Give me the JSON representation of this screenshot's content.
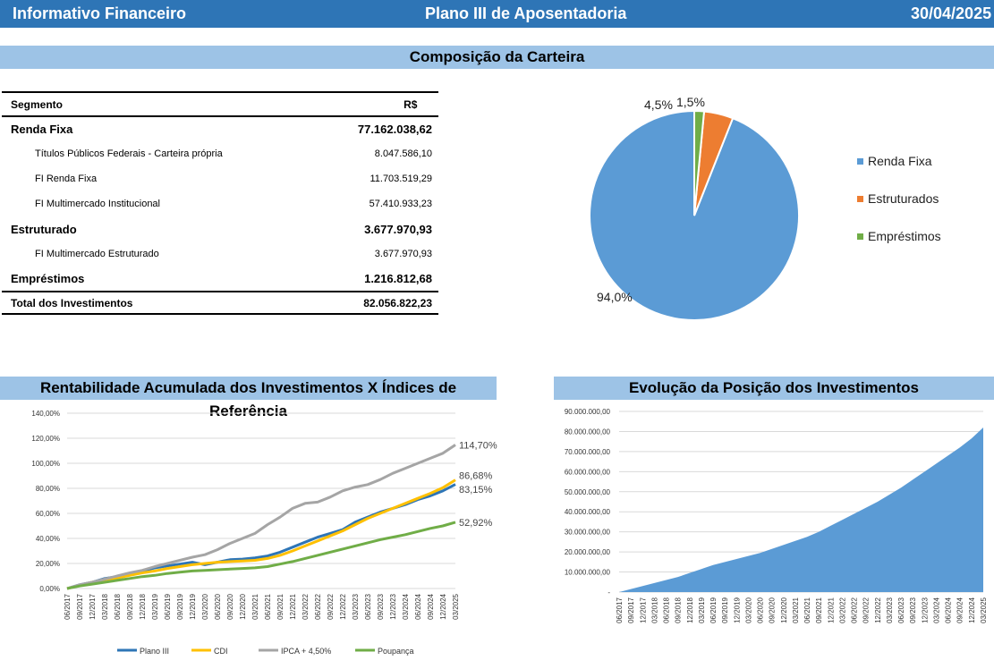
{
  "header": {
    "left_title": "Informativo Financeiro",
    "center_title": "Plano III de Aposentadoria",
    "date": "30/04/2025"
  },
  "composition": {
    "section_title": "Composição da Carteira",
    "table": {
      "col_segment": "Segmento",
      "col_value": "R$",
      "rows": [
        {
          "label": "Renda Fixa",
          "value": "77.162.038,62",
          "level": "main"
        },
        {
          "label": "Títulos Públicos Federais - Carteira própria",
          "value": "8.047.586,10",
          "level": "sub"
        },
        {
          "label": "FI Renda Fixa",
          "value": "11.703.519,29",
          "level": "sub"
        },
        {
          "label": "FI Multimercado Institucional",
          "value": "57.410.933,23",
          "level": "sub"
        },
        {
          "label": "Estruturado",
          "value": "3.677.970,93",
          "level": "main"
        },
        {
          "label": "FI Multimercado Estruturado",
          "value": "3.677.970,93",
          "level": "sub"
        },
        {
          "label": "Empréstimos",
          "value": "1.216.812,68",
          "level": "main"
        }
      ],
      "total_label": "Total dos Investimentos",
      "total_value": "82.056.822,23"
    }
  },
  "returns_title": "Rentabilidade Acumulada dos Investimentos X Índices de Referência",
  "position_title": "Evolução da Posição dos Investimentos",
  "chart_data": [
    {
      "type": "pie",
      "labels": [
        "Renda Fixa",
        "Estruturados",
        "Empréstimos"
      ],
      "values": [
        94.0,
        4.5,
        1.5
      ],
      "data_labels": [
        "94,0%",
        "4,5%",
        "1,5%"
      ],
      "colors": [
        "#5b9bd5",
        "#ed7d31",
        "#70ad47"
      ],
      "legend_position": "right"
    },
    {
      "type": "line",
      "x": [
        "06/2017",
        "09/2017",
        "12/2017",
        "03/2018",
        "06/2018",
        "09/2018",
        "12/2018",
        "03/2019",
        "06/2019",
        "09/2019",
        "12/2019",
        "03/2020",
        "06/2020",
        "09/2020",
        "12/2020",
        "03/2021",
        "06/2021",
        "09/2021",
        "12/2021",
        "03/2022",
        "06/2022",
        "09/2022",
        "12/2022",
        "03/2023",
        "06/2023",
        "09/2023",
        "12/2023",
        "03/2024",
        "06/2024",
        "09/2024",
        "12/2024",
        "03/2025"
      ],
      "series": [
        {
          "name": "Plano III",
          "color": "#2e75b6",
          "end_label": "83,15%",
          "values": [
            0,
            3,
            5,
            8,
            9.5,
            11,
            14,
            16.5,
            18,
            19.5,
            21,
            19,
            21,
            23,
            23.5,
            24.5,
            26,
            29,
            33,
            37,
            41,
            44,
            47,
            53,
            57,
            61,
            64,
            67,
            71,
            74,
            78,
            83.15
          ]
        },
        {
          "name": "CDI",
          "color": "#ffc000",
          "end_label": "86,68%",
          "values": [
            0,
            2.5,
            5,
            7,
            8.5,
            10.5,
            12.5,
            14,
            16,
            17.5,
            19,
            20,
            21,
            21.5,
            22,
            22.5,
            24,
            26.5,
            30,
            34,
            38,
            42,
            46,
            51,
            56,
            60,
            64,
            68,
            72,
            76,
            80.5,
            86.68
          ]
        },
        {
          "name": "IPCA + 4,50%",
          "color": "#a5a5a5",
          "end_label": "114,70%",
          "values": [
            0,
            3,
            5,
            7.5,
            10,
            12.5,
            14.5,
            17.5,
            20,
            22.5,
            25,
            27,
            31,
            36,
            40,
            44,
            51,
            57,
            64,
            68,
            69,
            73,
            78,
            81,
            83,
            87,
            92,
            96,
            100,
            104,
            108,
            114.7
          ]
        },
        {
          "name": "Poupança",
          "color": "#70ad47",
          "end_label": "52,92%",
          "values": [
            0,
            2,
            3.5,
            5,
            6.5,
            8,
            9.5,
            10.5,
            12,
            13,
            14,
            14.5,
            15,
            15.5,
            16,
            16.5,
            17.5,
            19.5,
            21.5,
            24,
            26.5,
            29,
            31.5,
            34,
            36.5,
            39,
            41,
            43,
            45.5,
            48,
            50,
            52.92
          ]
        }
      ],
      "y_ticks": [
        "0,00%",
        "20,00%",
        "40,00%",
        "60,00%",
        "80,00%",
        "100,00%",
        "120,00%",
        "140,00%"
      ],
      "ylim": [
        0,
        140
      ],
      "legend_position": "bottom",
      "grid": true
    },
    {
      "type": "area",
      "x": [
        "06/2017",
        "09/2017",
        "12/2017",
        "03/2018",
        "06/2018",
        "09/2018",
        "12/2018",
        "03/2019",
        "06/2019",
        "09/2019",
        "12/2019",
        "03/2020",
        "06/2020",
        "09/2020",
        "12/2020",
        "03/2021",
        "06/2021",
        "09/2021",
        "12/2021",
        "03/2022",
        "06/2022",
        "09/2022",
        "12/2022",
        "03/2023",
        "06/2023",
        "09/2023",
        "12/2023",
        "03/2024",
        "06/2024",
        "09/2024",
        "12/2024",
        "03/2025"
      ],
      "values": [
        0,
        1.5,
        3,
        4.5,
        6,
        7.5,
        9.5,
        11.5,
        13.5,
        15,
        16.5,
        18,
        19.5,
        21.5,
        23.5,
        25.5,
        27.5,
        30,
        33,
        36,
        39,
        42,
        45,
        48.5,
        52,
        56,
        60,
        64,
        68,
        72,
        76.5,
        82
      ],
      "color": "#5b9bd5",
      "y_ticks": [
        "-",
        "10.000.000,00",
        "20.000.000,00",
        "30.000.000,00",
        "40.000.000,00",
        "50.000.000,00",
        "60.000.000,00",
        "70.000.000,00",
        "80.000.000,00",
        "90.000.000,00"
      ],
      "ylim": [
        0,
        90
      ],
      "y_unit": "millions",
      "grid": true
    }
  ]
}
